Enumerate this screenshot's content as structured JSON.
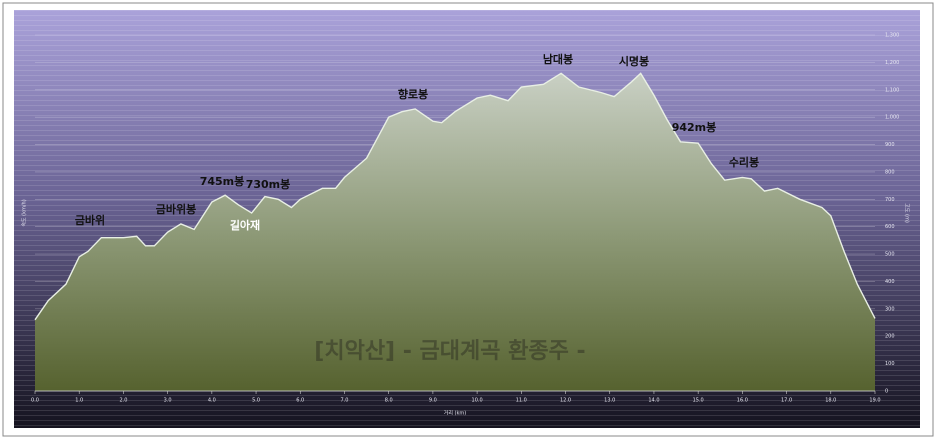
{
  "chart_data": {
    "type": "area",
    "title": "[치악산] - 금대계곡 환종주 -",
    "x_label": "거리 (km)",
    "y_label": "속도 (km/h)",
    "y2_label": "고도 (m)",
    "color": "#e8efe4",
    "x": [
      0,
      0.3,
      0.7,
      1.0,
      1.2,
      1.5,
      2.0,
      2.3,
      2.5,
      2.7,
      3.0,
      3.3,
      3.6,
      4.0,
      4.3,
      4.6,
      4.9,
      5.2,
      5.5,
      5.8,
      6.0,
      6.5,
      6.8,
      7.0,
      7.5,
      8.0,
      8.3,
      8.6,
      9.0,
      9.2,
      9.5,
      10.0,
      10.3,
      10.7,
      11.0,
      11.5,
      11.9,
      12.3,
      12.8,
      13.1,
      13.5,
      13.7,
      14.0,
      14.3,
      14.6,
      15.0,
      15.3,
      15.6,
      16.0,
      16.2,
      16.5,
      16.8,
      17.3,
      17.8,
      18.0,
      18.3,
      18.6,
      19.0
    ],
    "values": [
      260,
      330,
      390,
      490,
      510,
      560,
      560,
      565,
      530,
      530,
      580,
      610,
      590,
      690,
      715,
      680,
      650,
      710,
      700,
      670,
      700,
      740,
      740,
      780,
      850,
      1000,
      1020,
      1030,
      985,
      980,
      1020,
      1070,
      1080,
      1060,
      1110,
      1120,
      1160,
      1110,
      1090,
      1075,
      1130,
      1160,
      1080,
      990,
      910,
      905,
      830,
      770,
      780,
      775,
      730,
      740,
      700,
      670,
      640,
      510,
      390,
      265
    ],
    "xlim": [
      0,
      19
    ],
    "xticks": [
      {
        "value": 0,
        "label": "0.0"
      },
      {
        "value": 1,
        "label": "1.0"
      },
      {
        "value": 2,
        "label": "2.0"
      },
      {
        "value": 3,
        "label": "3.0"
      },
      {
        "value": 4,
        "label": "4.0"
      },
      {
        "value": 5,
        "label": "5.0"
      },
      {
        "value": 6,
        "label": "6.0"
      },
      {
        "value": 7,
        "label": "7.0"
      },
      {
        "value": 8,
        "label": "8.0"
      },
      {
        "value": 9,
        "label": "9.0"
      },
      {
        "value": 10,
        "label": "10.0"
      },
      {
        "value": 11,
        "label": "11.0"
      },
      {
        "value": 12,
        "label": "12.0"
      },
      {
        "value": 13,
        "label": "13.0"
      },
      {
        "value": 14,
        "label": "14.0"
      },
      {
        "value": 15,
        "label": "15.0"
      },
      {
        "value": 16,
        "label": "16.0"
      },
      {
        "value": 17,
        "label": "17.0"
      },
      {
        "value": 18,
        "label": "18.0"
      },
      {
        "value": 19,
        "label": "19.0"
      }
    ],
    "ylim": [
      0,
      1300
    ],
    "yticks": [
      0,
      100,
      200,
      300,
      400,
      500,
      600,
      700,
      800,
      900,
      {
        "value": 1000,
        "label": "1,000"
      },
      {
        "value": 1100,
        "label": "1,100"
      },
      {
        "value": 1200,
        "label": "1,200"
      },
      {
        "value": 1300,
        "label": "1,300"
      }
    ],
    "grid": true,
    "annotations": [
      "금바위",
      "금바위봉",
      "745m봉",
      "730m봉",
      "길아재",
      "향로봉",
      "남대봉",
      "시명봉",
      "942m봉",
      "수리봉"
    ]
  }
}
